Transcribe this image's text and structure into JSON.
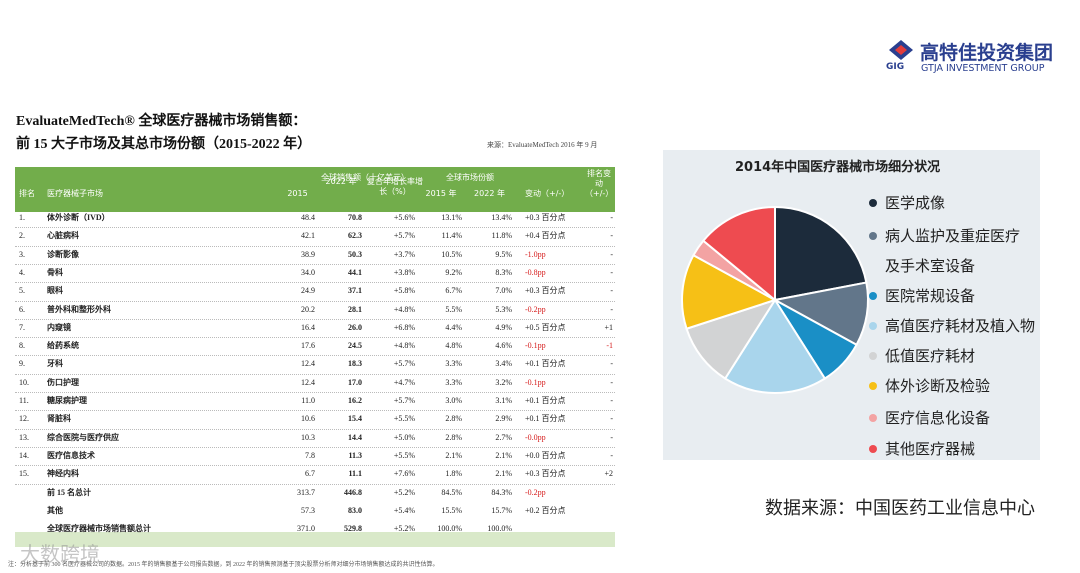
{
  "logo": {
    "mark": "GIG",
    "name": "高特佳投资集团",
    "name_en": "GTJA INVESTMENT GROUP"
  },
  "header": {
    "title_line1": "EvaluateMedTech® 全球医疗器械市场销售额：",
    "title_line2": "前 15 大子市场及其总市场份额（2015-2022 年）",
    "source": "来源：EvaluateMedTech 2016 年 9 月"
  },
  "table": {
    "group_headers": [
      "全球销售额（十亿美元）",
      "全球市场份额"
    ],
    "columns": [
      "排名",
      "医疗器械子市场",
      "2015",
      "2022 年",
      "复合年增长率增长（%）",
      "2015 年",
      "2022 年",
      "变动（+/-）",
      "排名变动（+/-）"
    ],
    "rows": [
      [
        "1.",
        "体外诊断（IVD）",
        "48.4",
        "70.8",
        "+5.6%",
        "13.1%",
        "13.4%",
        "+0.3 百分点",
        "-"
      ],
      [
        "2.",
        "心脏病科",
        "42.1",
        "62.3",
        "+5.7%",
        "11.4%",
        "11.8%",
        "+0.4 百分点",
        "-"
      ],
      [
        "3.",
        "诊断影像",
        "38.9",
        "50.3",
        "+3.7%",
        "10.5%",
        "9.5%",
        "-1.0pp",
        "-"
      ],
      [
        "4.",
        "骨科",
        "34.0",
        "44.1",
        "+3.8%",
        "9.2%",
        "8.3%",
        "-0.8pp",
        "-"
      ],
      [
        "5.",
        "眼科",
        "24.9",
        "37.1",
        "+5.8%",
        "6.7%",
        "7.0%",
        "+0.3 百分点",
        "-"
      ],
      [
        "6.",
        "普外科和整形外科",
        "20.2",
        "28.1",
        "+4.8%",
        "5.5%",
        "5.3%",
        "-0.2pp",
        "-"
      ],
      [
        "7.",
        "内窥镜",
        "16.4",
        "26.0",
        "+6.8%",
        "4.4%",
        "4.9%",
        "+0.5 百分点",
        "+1"
      ],
      [
        "8.",
        "给药系统",
        "17.6",
        "24.5",
        "+4.8%",
        "4.8%",
        "4.6%",
        "-0.1pp",
        "-1"
      ],
      [
        "9.",
        "牙科",
        "12.4",
        "18.3",
        "+5.7%",
        "3.3%",
        "3.4%",
        "+0.1 百分点",
        "-"
      ],
      [
        "10.",
        "伤口护理",
        "12.4",
        "17.0",
        "+4.7%",
        "3.3%",
        "3.2%",
        "-0.1pp",
        "-"
      ],
      [
        "11.",
        "糖尿病护理",
        "11.0",
        "16.2",
        "+5.7%",
        "3.0%",
        "3.1%",
        "+0.1 百分点",
        "-"
      ],
      [
        "12.",
        "肾脏科",
        "10.6",
        "15.4",
        "+5.5%",
        "2.8%",
        "2.9%",
        "+0.1 百分点",
        "-"
      ],
      [
        "13.",
        "综合医院与医疗供应",
        "10.3",
        "14.4",
        "+5.0%",
        "2.8%",
        "2.7%",
        "-0.0pp",
        "-"
      ],
      [
        "14.",
        "医疗信息技术",
        "7.8",
        "11.3",
        "+5.5%",
        "2.1%",
        "2.1%",
        "+0.0 百分点",
        "-"
      ],
      [
        "15.",
        "神经内科",
        "6.7",
        "11.1",
        "+7.6%",
        "1.8%",
        "2.1%",
        "+0.3 百分点",
        "+2"
      ]
    ],
    "summary_rows": [
      [
        "前 15 名总计",
        "313.7",
        "446.8",
        "+5.2%",
        "84.5%",
        "84.3%",
        "-0.2pp"
      ],
      [
        "其他",
        "57.3",
        "83.0",
        "+5.4%",
        "15.5%",
        "15.7%",
        "+0.2 百分点"
      ],
      [
        "全球医疗器械市场销售额总计",
        "371.0",
        "529.8",
        "+5.2%",
        "100.0%",
        "100.0%"
      ]
    ],
    "footnote": "注：分析基于前 300 名医疗器械公司的数据。2015 年的销售额基于公司报告数据，到 2022 年的销售预测基于顶尖股票分析师对细分市场销售额达成的共识性估算。"
  },
  "chart_data": {
    "type": "pie",
    "title": "2014年中国医疗器械市场细分状况",
    "categories": [
      "医学成像",
      "病人监护及重症医疗及手术室设备",
      "医院常规设备",
      "高值医疗耗材及植入物",
      "低值医疗耗材",
      "体外诊断及检验",
      "医疗信息化设备",
      "其他医疗器械"
    ],
    "values": [
      22,
      11,
      8,
      18,
      11,
      13,
      3,
      14
    ],
    "colors": [
      "#1c2b3b",
      "#62768a",
      "#1a8fc6",
      "#a9d5ec",
      "#d2d3d4",
      "#f6c016",
      "#f3a3a3",
      "#ee4b50"
    ]
  },
  "data_source": "数据来源：中国医药工业信息中心",
  "watermark": "大数跨境"
}
